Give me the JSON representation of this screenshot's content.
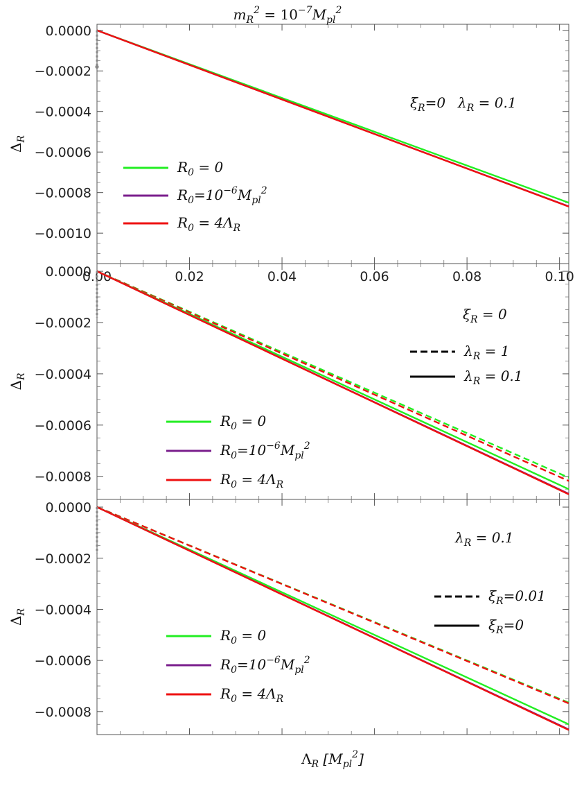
{
  "figure_title": {
    "base": "m",
    "sub": "R",
    "sup": "2",
    "eq": " = 10",
    "exp": "−7",
    "unit": "M",
    "unit_sub": "pl",
    "unit_sup": "2"
  },
  "x_axis_label": {
    "greek": "Λ",
    "sub": "R",
    "bracket_open": " [M",
    "unit_sub": "pl",
    "unit_sup": "2",
    "bracket_close": "]"
  },
  "y_axis_label": {
    "base": "Δ",
    "sub": "R"
  },
  "colors": {
    "green": "#22ee22",
    "purple": "#7a1e8c",
    "red": "#ee1111",
    "gray": "#888888",
    "black": "#000000"
  },
  "chart_data": [
    {
      "type": "line",
      "xlim": [
        0,
        0.102
      ],
      "ylim": [
        -0.00115,
        3e-05
      ],
      "x_ticks": [
        0.0,
        0.02,
        0.04,
        0.06,
        0.08,
        0.1
      ],
      "x_tick_labels": [
        "0.00",
        "0.02",
        "0.04",
        "0.06",
        "0.08",
        "0.10"
      ],
      "y_ticks": [
        0,
        -0.0002,
        -0.0004,
        -0.0006,
        -0.0008,
        -0.001
      ],
      "y_tick_labels": [
        "0.0000",
        "−0.0002",
        "−0.0004",
        "−0.0006",
        "−0.0008",
        "−0.0010"
      ],
      "annotation": {
        "text1": "ξ",
        "sub1": "R",
        "rest1": "=0",
        "text2": "λ",
        "sub2": "R",
        "rest2": " = 0.1"
      },
      "legend": [
        {
          "color": "green",
          "label_base": "R",
          "label_sub": "0",
          "label_rest": " = 0"
        },
        {
          "color": "purple",
          "label_base": "R",
          "label_sub": "0",
          "label_rest": "=10",
          "label_exp": "−6",
          "label_unit": "M",
          "label_unit_sub": "pl",
          "label_unit_sup": "2"
        },
        {
          "color": "red",
          "label_base": "R",
          "label_sub": "0",
          "label_rest": " = 4Λ",
          "label_tail_sub": "R"
        }
      ],
      "series": [
        {
          "color": "green",
          "style": "solid",
          "x": [
            0,
            0.102
          ],
          "y": [
            0,
            -0.00085
          ]
        },
        {
          "color": "purple",
          "style": "solid",
          "x": [
            0,
            0.102
          ],
          "y": [
            0,
            -0.000868
          ]
        },
        {
          "color": "red",
          "style": "solid",
          "x": [
            0,
            0.102
          ],
          "y": [
            0,
            -0.000869
          ]
        },
        {
          "color": "gray",
          "style": "dotted",
          "x": [
            0,
            0
          ],
          "y": [
            0,
            -0.00018
          ]
        }
      ]
    },
    {
      "type": "line",
      "xlim": [
        0,
        0.102
      ],
      "ylim": [
        -0.00089,
        3e-05
      ],
      "x_ticks": [
        0.0,
        0.02,
        0.04,
        0.06,
        0.08,
        0.1
      ],
      "y_ticks": [
        0,
        -0.0002,
        -0.0004,
        -0.0006,
        -0.0008
      ],
      "y_tick_labels": [
        "0.0000",
        "−0.0002",
        "−0.0004",
        "−0.0006",
        "−0.0008"
      ],
      "annotation": {
        "text1": "ξ",
        "sub1": "R",
        "rest1": " = 0"
      },
      "style_legend": [
        {
          "style": "dashed",
          "label_base": "λ",
          "label_sub": "R",
          "label_rest": " = 1"
        },
        {
          "style": "solid",
          "label_base": "λ",
          "label_sub": "R",
          "label_rest": " = 0.1"
        }
      ],
      "legend": [
        {
          "color": "green",
          "label_base": "R",
          "label_sub": "0",
          "label_rest": " = 0"
        },
        {
          "color": "purple",
          "label_base": "R",
          "label_sub": "0",
          "label_rest": "=10",
          "label_exp": "−6",
          "label_unit": "M",
          "label_unit_sub": "pl",
          "label_unit_sup": "2"
        },
        {
          "color": "red",
          "label_base": "R",
          "label_sub": "0",
          "label_rest": " = 4Λ",
          "label_tail_sub": "R"
        }
      ],
      "series": [
        {
          "color": "green",
          "style": "dashed",
          "x": [
            0,
            0.102
          ],
          "y": [
            0,
            -0.000805
          ]
        },
        {
          "color": "red",
          "style": "dashed",
          "x": [
            0,
            0.102
          ],
          "y": [
            0,
            -0.000818
          ]
        },
        {
          "color": "green",
          "style": "solid",
          "x": [
            0,
            0.102
          ],
          "y": [
            0,
            -0.00085
          ]
        },
        {
          "color": "purple",
          "style": "solid",
          "x": [
            0,
            0.102
          ],
          "y": [
            0,
            -0.000868
          ]
        },
        {
          "color": "red",
          "style": "solid",
          "x": [
            0,
            0.102
          ],
          "y": [
            0,
            -0.00087
          ]
        },
        {
          "color": "gray",
          "style": "dotted",
          "x": [
            0,
            0
          ],
          "y": [
            0,
            -0.00018
          ]
        }
      ]
    },
    {
      "type": "line",
      "xlim": [
        0,
        0.102
      ],
      "ylim": [
        -0.00089,
        3e-05
      ],
      "x_ticks": [
        0.0,
        0.02,
        0.04,
        0.06,
        0.08,
        0.1
      ],
      "y_ticks": [
        0,
        -0.0002,
        -0.0004,
        -0.0006,
        -0.0008
      ],
      "y_tick_labels": [
        "0.0000",
        "−0.0002",
        "−0.0004",
        "−0.0006",
        "−0.0008"
      ],
      "annotation": {
        "text1": "λ",
        "sub1": "R",
        "rest1": " = 0.1"
      },
      "style_legend": [
        {
          "style": "dashed",
          "label_base": "ξ",
          "label_sub": "R",
          "label_rest": "=0.01"
        },
        {
          "style": "solid",
          "label_base": "ξ",
          "label_sub": "R",
          "label_rest": "=0"
        }
      ],
      "legend": [
        {
          "color": "green",
          "label_base": "R",
          "label_sub": "0",
          "label_rest": " = 0"
        },
        {
          "color": "purple",
          "label_base": "R",
          "label_sub": "0",
          "label_rest": "=10",
          "label_exp": "−6",
          "label_unit": "M",
          "label_unit_sub": "pl",
          "label_unit_sup": "2"
        },
        {
          "color": "red",
          "label_base": "R",
          "label_sub": "0",
          "label_rest": " = 4Λ",
          "label_tail_sub": "R"
        }
      ],
      "series": [
        {
          "color": "green",
          "style": "dashed",
          "x": [
            0,
            0.102
          ],
          "y": [
            0,
            -0.000765
          ]
        },
        {
          "color": "red",
          "style": "dashed",
          "x": [
            0,
            0.102
          ],
          "y": [
            0,
            -0.000768
          ]
        },
        {
          "color": "green",
          "style": "solid",
          "x": [
            0,
            0.102
          ],
          "y": [
            0,
            -0.00085
          ]
        },
        {
          "color": "purple",
          "style": "solid",
          "x": [
            0,
            0.102
          ],
          "y": [
            0,
            -0.00087
          ]
        },
        {
          "color": "red",
          "style": "solid",
          "x": [
            0,
            0.102
          ],
          "y": [
            0,
            -0.000872
          ]
        },
        {
          "color": "gray",
          "style": "dotted",
          "x": [
            0,
            0
          ],
          "y": [
            0,
            -0.00018
          ]
        }
      ]
    }
  ]
}
